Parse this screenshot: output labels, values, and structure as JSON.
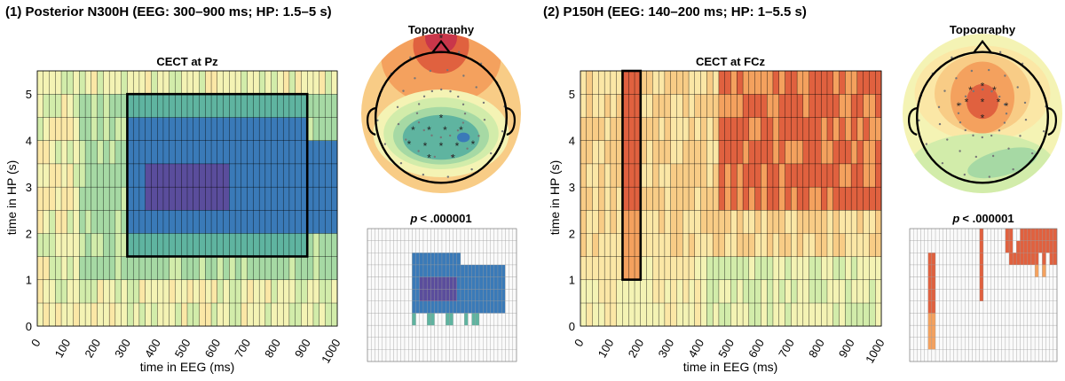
{
  "panels": [
    {
      "id": "left",
      "panel_title": "(1) Posterior N300H (EEG: 300–900 ms; HP: 1.5–5 s)",
      "heatmap_title": "CECT at Pz",
      "topo_title": "Topography",
      "pval_title": "p < .000001",
      "xlabel": "time in EEG (ms)",
      "ylabel": "time in HP (s)",
      "x_ticks": [
        "0",
        "100",
        "200",
        "300",
        "400",
        "500",
        "600",
        "700",
        "800",
        "900",
        "1000"
      ],
      "y_ticks": [
        "0",
        "1",
        "2",
        "3",
        "4",
        "5"
      ],
      "roi": {
        "eeg_ms": [
          300,
          900
        ],
        "hp_s": [
          1.5,
          5
        ]
      }
    },
    {
      "id": "right",
      "panel_title": "(2) P150H (EEG: 140–200 ms; HP: 1–5.5 s)",
      "heatmap_title": "CECT at FCz",
      "topo_title": "Topography",
      "pval_title": "p < .000001",
      "xlabel": "time in EEG (ms)",
      "ylabel": "time in HP (s)",
      "x_ticks": [
        "0",
        "100",
        "200",
        "300",
        "400",
        "500",
        "600",
        "700",
        "800",
        "900",
        "1000"
      ],
      "y_ticks": [
        "0",
        "1",
        "2",
        "3",
        "4",
        "5"
      ],
      "roi": {
        "eeg_ms": [
          140,
          200
        ],
        "hp_s": [
          1,
          5.5
        ]
      }
    }
  ],
  "chart_data": [
    {
      "type": "heatmap",
      "title": "CECT at Pz",
      "xlabel": "time in EEG (ms)",
      "ylabel": "time in HP (s)",
      "xlim": [
        0,
        1000
      ],
      "ylim": [
        0,
        5.5
      ],
      "x_cell_ms": 20,
      "y_cell_s": 0.5,
      "colormap": "spectral (negative = blue/purple, positive = red)",
      "clusters": [
        {
          "label": "green",
          "eeg_ms": [
            140,
            1000
          ],
          "hp_s": [
            1.0,
            5.0
          ],
          "value": -2
        },
        {
          "label": "teal",
          "eeg_ms": [
            300,
            900
          ],
          "hp_s": [
            1.5,
            5.0
          ],
          "value": -3
        },
        {
          "label": "blue",
          "eeg_ms": [
            300,
            1000
          ],
          "hp_s": [
            2.0,
            4.5
          ],
          "value": -4
        },
        {
          "label": "purple",
          "eeg_ms": [
            360,
            640
          ],
          "hp_s": [
            2.5,
            3.5
          ],
          "value": -5
        }
      ],
      "roi_box": {
        "eeg_ms": [
          300,
          900
        ],
        "hp_s": [
          1.5,
          5
        ]
      }
    },
    {
      "type": "heatmap",
      "title": "CECT at FCz",
      "xlabel": "time in EEG (ms)",
      "ylabel": "time in HP (s)",
      "xlim": [
        0,
        1000
      ],
      "ylim": [
        0,
        5.5
      ],
      "x_cell_ms": 20,
      "y_cell_s": 0.5,
      "colormap": "spectral (negative = blue/purple, positive = red)",
      "clusters": [
        {
          "label": "red band",
          "eeg_ms": [
            140,
            200
          ],
          "hp_s": [
            1.0,
            5.5
          ],
          "value": 4
        },
        {
          "label": "orange late",
          "eeg_ms": [
            460,
            1000
          ],
          "hp_s": [
            2.5,
            5.5
          ],
          "value": 3
        },
        {
          "label": "yellow",
          "eeg_ms": [
            0,
            1000
          ],
          "hp_s": [
            0,
            2.5
          ],
          "value": 1
        }
      ],
      "roi_box": {
        "eeg_ms": [
          140,
          200
        ],
        "hp_s": [
          1,
          5.5
        ]
      }
    }
  ],
  "colors": {
    "purple": "#5a4d9c",
    "blue": "#3a7ab8",
    "teal": "#5fb4a0",
    "green": "#a6d9a4",
    "lightgreen": "#d2ecaa",
    "yellow": "#f4f3b4",
    "cream": "#fbe7a6",
    "peach": "#f8cc86",
    "orange": "#f4a15e",
    "red": "#e0613f",
    "darkred": "#c9364a",
    "maroon": "#a21a3e"
  }
}
